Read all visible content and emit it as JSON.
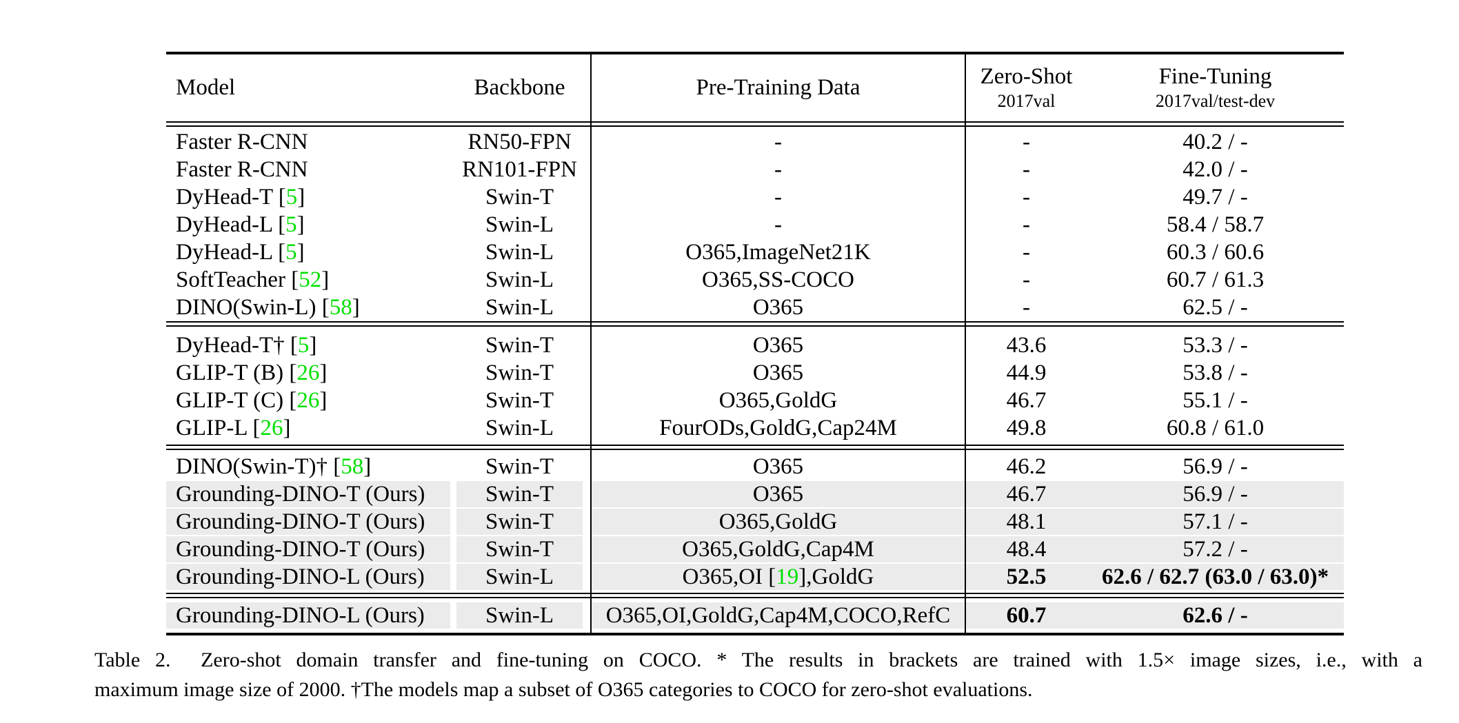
{
  "colors": {
    "citation_green": "#00DF00",
    "row_shade": "#EBEBEB",
    "rule_black": "#000000",
    "background": "#FFFFFF"
  },
  "table": {
    "header": {
      "model": "Model",
      "backbone": "Backbone",
      "pretraining": "Pre-Training Data",
      "zero_shot_line1": "Zero-Shot",
      "zero_shot_line2": "2017val",
      "fine_tuning_line1": "Fine-Tuning",
      "fine_tuning_line2": "2017val/test-dev"
    },
    "blocks": [
      {
        "rows": [
          {
            "model": "Faster R-CNN",
            "model_cite": null,
            "backbone": "RN50-FPN",
            "pretrain_pre": "-",
            "pretrain_cite": null,
            "pretrain_post": "",
            "zero_shot": "-",
            "fine_tuning": "40.2 / -",
            "bold": false,
            "shaded": false
          },
          {
            "model": "Faster R-CNN",
            "model_cite": null,
            "backbone": "RN101-FPN",
            "pretrain_pre": "-",
            "pretrain_cite": null,
            "pretrain_post": "",
            "zero_shot": "-",
            "fine_tuning": "42.0 / -",
            "bold": false,
            "shaded": false
          },
          {
            "model": "DyHead-T",
            "model_cite": "5",
            "backbone": "Swin-T",
            "pretrain_pre": "-",
            "pretrain_cite": null,
            "pretrain_post": "",
            "zero_shot": "-",
            "fine_tuning": "49.7 / -",
            "bold": false,
            "shaded": false
          },
          {
            "model": "DyHead-L",
            "model_cite": "5",
            "backbone": "Swin-L",
            "pretrain_pre": "-",
            "pretrain_cite": null,
            "pretrain_post": "",
            "zero_shot": "-",
            "fine_tuning": "58.4 / 58.7",
            "bold": false,
            "shaded": false
          },
          {
            "model": "DyHead-L",
            "model_cite": "5",
            "backbone": "Swin-L",
            "pretrain_pre": "O365,ImageNet21K",
            "pretrain_cite": null,
            "pretrain_post": "",
            "zero_shot": "-",
            "fine_tuning": "60.3 / 60.6",
            "bold": false,
            "shaded": false
          },
          {
            "model": "SoftTeacher",
            "model_cite": "52",
            "backbone": "Swin-L",
            "pretrain_pre": "O365,SS-COCO",
            "pretrain_cite": null,
            "pretrain_post": "",
            "zero_shot": "-",
            "fine_tuning": "60.7 / 61.3",
            "bold": false,
            "shaded": false
          },
          {
            "model": "DINO(Swin-L)",
            "model_cite": "58",
            "backbone": "Swin-L",
            "pretrain_pre": "O365",
            "pretrain_cite": null,
            "pretrain_post": "",
            "zero_shot": "-",
            "fine_tuning": "62.5 / -",
            "bold": false,
            "shaded": false
          }
        ]
      },
      {
        "rows": [
          {
            "model": "DyHead-T†",
            "model_cite": "5",
            "backbone": "Swin-T",
            "pretrain_pre": "O365",
            "pretrain_cite": null,
            "pretrain_post": "",
            "zero_shot": "43.6",
            "fine_tuning": "53.3 / -",
            "bold": false,
            "shaded": false
          },
          {
            "model": "GLIP-T (B)",
            "model_cite": "26",
            "backbone": "Swin-T",
            "pretrain_pre": "O365",
            "pretrain_cite": null,
            "pretrain_post": "",
            "zero_shot": "44.9",
            "fine_tuning": "53.8 / -",
            "bold": false,
            "shaded": false
          },
          {
            "model": "GLIP-T (C)",
            "model_cite": "26",
            "backbone": "Swin-T",
            "pretrain_pre": "O365,GoldG",
            "pretrain_cite": null,
            "pretrain_post": "",
            "zero_shot": "46.7",
            "fine_tuning": "55.1 / -",
            "bold": false,
            "shaded": false
          },
          {
            "model": "GLIP-L",
            "model_cite": "26",
            "backbone": "Swin-L",
            "pretrain_pre": "FourODs,GoldG,Cap24M",
            "pretrain_cite": null,
            "pretrain_post": "",
            "zero_shot": "49.8",
            "fine_tuning": "60.8 / 61.0",
            "bold": false,
            "shaded": false
          }
        ]
      },
      {
        "rows": [
          {
            "model": "DINO(Swin-T)†",
            "model_cite": "58",
            "backbone": "Swin-T",
            "pretrain_pre": "O365",
            "pretrain_cite": null,
            "pretrain_post": "",
            "zero_shot": "46.2",
            "fine_tuning": "56.9 / -",
            "bold": false,
            "shaded": false
          },
          {
            "model": "Grounding-DINO-T (Ours)",
            "model_cite": null,
            "backbone": "Swin-T",
            "pretrain_pre": "O365",
            "pretrain_cite": null,
            "pretrain_post": "",
            "zero_shot": "46.7",
            "fine_tuning": "56.9 / -",
            "bold": false,
            "shaded": true
          },
          {
            "model": "Grounding-DINO-T (Ours)",
            "model_cite": null,
            "backbone": "Swin-T",
            "pretrain_pre": "O365,GoldG",
            "pretrain_cite": null,
            "pretrain_post": "",
            "zero_shot": "48.1",
            "fine_tuning": "57.1 / -",
            "bold": false,
            "shaded": true
          },
          {
            "model": "Grounding-DINO-T (Ours)",
            "model_cite": null,
            "backbone": "Swin-T",
            "pretrain_pre": "O365,GoldG,Cap4M",
            "pretrain_cite": null,
            "pretrain_post": "",
            "zero_shot": "48.4",
            "fine_tuning": "57.2 / -",
            "bold": false,
            "shaded": true
          },
          {
            "model": "Grounding-DINO-L (Ours)",
            "model_cite": null,
            "backbone": "Swin-L",
            "pretrain_pre": "O365,OI",
            "pretrain_cite": "19",
            "pretrain_post": ",GoldG",
            "zero_shot": "52.5",
            "fine_tuning": "62.6 / 62.7 (63.0 / 63.0)*",
            "bold": true,
            "shaded": true
          }
        ]
      },
      {
        "rows": [
          {
            "model": "Grounding-DINO-L (Ours)",
            "model_cite": null,
            "backbone": "Swin-L",
            "pretrain_pre": "O365,OI,GoldG,Cap4M,COCO,RefC",
            "pretrain_cite": null,
            "pretrain_post": "",
            "zero_shot": "60.7",
            "fine_tuning": "62.6 / -",
            "bold": true,
            "shaded": true
          }
        ]
      }
    ]
  },
  "caption": {
    "line1": "Table 2.  Zero-shot domain transfer and fine-tuning on COCO. * The results in brackets are trained with 1.5× image sizes, i.e., with a",
    "line2": "maximum image size of 2000. †The models map a subset of O365 categories to COCO for zero-shot evaluations."
  }
}
